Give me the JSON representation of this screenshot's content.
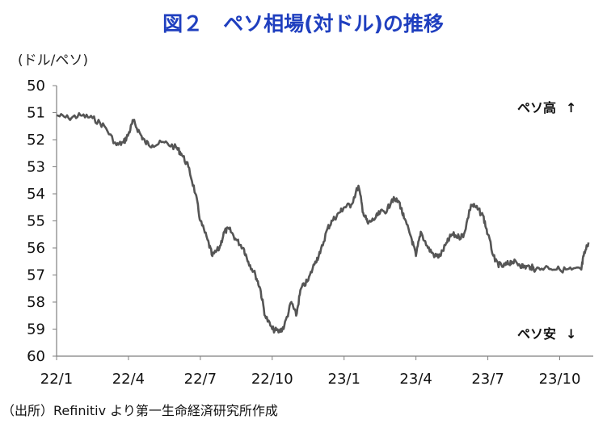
{
  "chart_data": {
    "type": "line",
    "title": "図２　ペソ相場(対ドル)の推移",
    "unit_label": "(ドル/ペソ)",
    "yaxis": {
      "ylim": [
        50,
        60
      ],
      "inverted": true,
      "ticks": [
        50,
        51,
        52,
        53,
        54,
        55,
        56,
        57,
        58,
        59,
        60
      ]
    },
    "xaxis": {
      "tick_labels": [
        "22/1",
        "22/4",
        "22/7",
        "22/10",
        "23/1",
        "23/4",
        "23/7",
        "23/10"
      ],
      "start": "22/1",
      "end": "23/11"
    },
    "annotations": {
      "peso_strong": "ペソ高",
      "peso_weak": "ペソ安"
    },
    "source": "（出所）Refinitiv より第一生命経済研究所作成",
    "line_color": "#555555",
    "title_color": "#1f3fbf",
    "series": [
      {
        "x": [
          0,
          0.5,
          1,
          1.5,
          2,
          2.5,
          2.8,
          3,
          3.2,
          3.5,
          3.7,
          4,
          4.5,
          5,
          5.2,
          5.5,
          5.8,
          6,
          6.3,
          6.5,
          6.8,
          7,
          7.2,
          7.5,
          7.8,
          8,
          8.3,
          8.5,
          8.7,
          9,
          9.3,
          9.5,
          9.8,
          10,
          10.2,
          10.5,
          10.8,
          11,
          11.3,
          11.5,
          11.8,
          12,
          12.3,
          12.6,
          12.8,
          13,
          13.3,
          13.5,
          13.8,
          14,
          14.3,
          14.5,
          14.8,
          15,
          15.2,
          15.5,
          15.8,
          16,
          16.3,
          16.5,
          16.8,
          17,
          17.3,
          17.5,
          17.8,
          18,
          18.3,
          18.6,
          18.8,
          19,
          19.3,
          19.5,
          19.8,
          20,
          20.5,
          21,
          21.5,
          21.9,
          22,
          22.2
        ],
        "y": [
          51.1,
          51.2,
          51.1,
          51.2,
          51.5,
          52.2,
          52.1,
          51.8,
          51.3,
          51.8,
          52.1,
          52.2,
          52.1,
          52.3,
          52.5,
          53.0,
          54.0,
          55.0,
          55.7,
          56.3,
          56.0,
          55.4,
          55.3,
          55.7,
          56.0,
          56.5,
          57.0,
          57.5,
          58.5,
          59.0,
          59.1,
          58.9,
          58.0,
          58.5,
          57.5,
          57.2,
          56.5,
          56.2,
          55.3,
          55.0,
          54.7,
          54.5,
          54.4,
          53.7,
          54.7,
          55.1,
          54.9,
          54.7,
          54.6,
          54.2,
          54.3,
          54.9,
          55.6,
          56.3,
          55.4,
          56.0,
          56.3,
          56.3,
          55.8,
          55.5,
          55.6,
          55.5,
          54.4,
          54.5,
          54.8,
          55.5,
          56.5,
          56.7,
          56.6,
          56.5,
          56.6,
          56.7,
          56.7,
          56.8,
          56.7,
          56.8,
          56.8,
          56.8,
          56.3,
          55.8
        ]
      }
    ]
  }
}
